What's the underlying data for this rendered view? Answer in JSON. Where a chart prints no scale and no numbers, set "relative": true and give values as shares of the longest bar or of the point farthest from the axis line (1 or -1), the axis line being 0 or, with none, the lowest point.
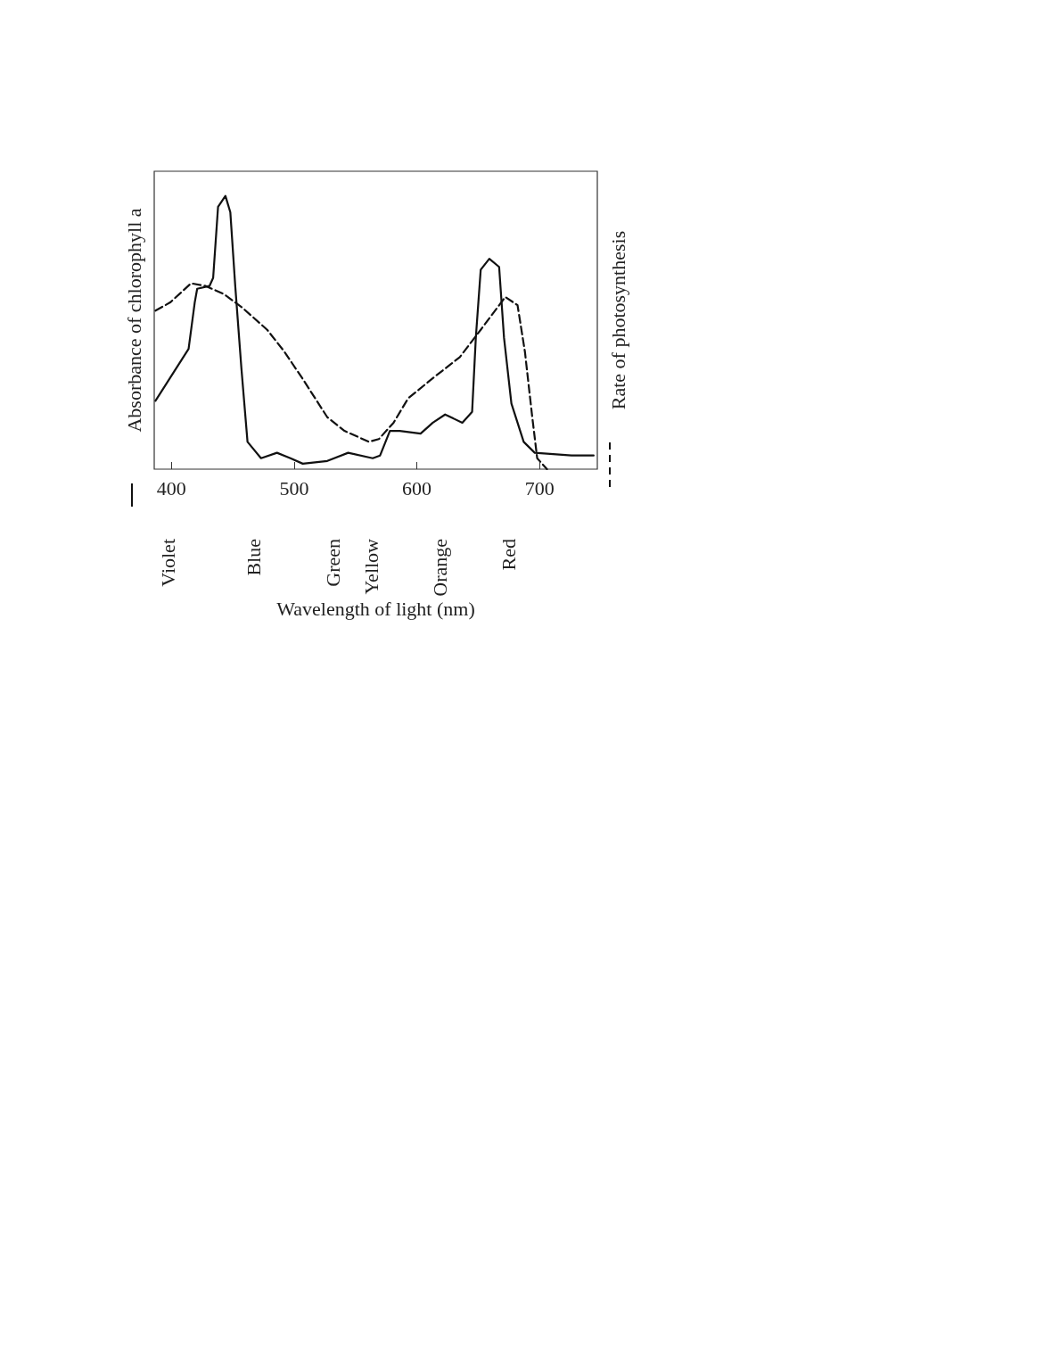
{
  "chart_data": {
    "type": "line",
    "relative": true,
    "ylabel": "Absorbance of chlorophyll a",
    "y2label": "Rate of photosynthesis",
    "xlim": [
      386,
      747
    ],
    "xticks": [
      400,
      500,
      600,
      700
    ],
    "marker": "none",
    "series": [
      {
        "color": "#111111",
        "line_style": "solid",
        "x": [
          387,
          414,
          419,
          421,
          431,
          434,
          438,
          444,
          448,
          452,
          457,
          462,
          473,
          486,
          497,
          507,
          527,
          544,
          564,
          570,
          578,
          586,
          603,
          613,
          623,
          637,
          645,
          648,
          652,
          659,
          667,
          671,
          677,
          687,
          696,
          726,
          744
        ],
        "values": [
          0.25,
          0.44,
          0.61,
          0.66,
          0.67,
          0.7,
          0.96,
          1,
          0.94,
          0.67,
          0.37,
          0.1,
          0.04,
          0.06,
          0.04,
          0.02,
          0.03,
          0.06,
          0.04,
          0.05,
          0.14,
          0.14,
          0.13,
          0.17,
          0.2,
          0.17,
          0.21,
          0.48,
          0.73,
          0.77,
          0.74,
          0.48,
          0.24,
          0.1,
          0.06,
          0.05,
          0.05
        ]
      },
      {
        "color": "#111111",
        "line_style": "dashed",
        "axis": "y2",
        "x": [
          387,
          399,
          416,
          428,
          443,
          458,
          478,
          492,
          507,
          527,
          541,
          561,
          569,
          581,
          593,
          615,
          635,
          652,
          672,
          682,
          688,
          694,
          698,
          706
        ],
        "values": [
          0.58,
          0.61,
          0.68,
          0.67,
          0.64,
          0.59,
          0.51,
          0.43,
          0.33,
          0.19,
          0.14,
          0.1,
          0.11,
          0.17,
          0.26,
          0.34,
          0.41,
          0.51,
          0.63,
          0.6,
          0.43,
          0.19,
          0.04,
          0.0
        ]
      }
    ],
    "annotations": [
      "Violet",
      "Blue",
      "Green",
      "Yellow",
      "Orange",
      "Red",
      "Wavelength of light (nm)"
    ]
  }
}
